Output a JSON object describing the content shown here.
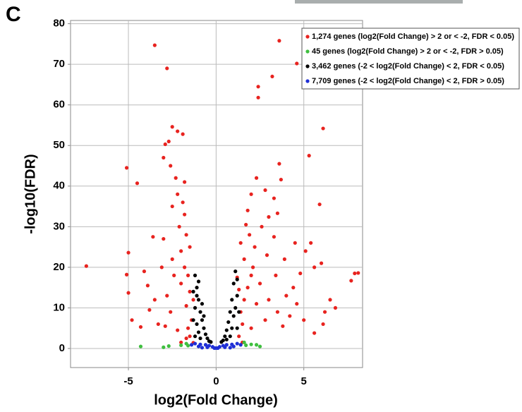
{
  "chart_data": {
    "type": "scatter",
    "panel_label": "C",
    "x_label": "log2(Fold Change)",
    "y_label": "-log10(FDR)",
    "xlim": [
      -8.3,
      8.35
    ],
    "ylim": [
      -4.7,
      80.8
    ],
    "xticks": [
      -5,
      0,
      5
    ],
    "yticks": [
      0,
      10,
      20,
      30,
      40,
      50,
      60,
      70,
      80
    ],
    "grid": true,
    "legend": "top-right",
    "series": [
      {
        "name": "1,274 genes (log2(Fold Change) > 2 or < -2, FDR < 0.05)",
        "color": "#e8231f",
        "x": [
          -7.4,
          -5.1,
          -4.5,
          -5.0,
          -5.1,
          -5.0,
          -3.5,
          -2.8,
          -2.5,
          -2.2,
          -1.9,
          -2.9,
          -2.7,
          -3.0,
          -2.6,
          -2.3,
          -1.8,
          3.6,
          4.6,
          3.2,
          2.4,
          2.4,
          6.1,
          5.3,
          2.3,
          3.6,
          3.7,
          5.9,
          2.8,
          3.3,
          3.5,
          3.0,
          7.9,
          8.1,
          7.7,
          6.8,
          6.2,
          5.6,
          4.8,
          4.4,
          -4.3,
          -4.8,
          -3.8,
          -3.9,
          -4.1,
          -3.6,
          -3.0,
          -2.5,
          -2.1,
          -1.7,
          -1.5,
          -2.5,
          -3.1,
          -2.8,
          -2.0,
          -1.7,
          -1.4,
          -1.5,
          -1.3,
          -2.2,
          -3.3,
          -1.8,
          -1.6,
          -2.4,
          -2.0,
          -1.9,
          -2.2,
          -1.8,
          -1.5,
          -1.3,
          -1.6,
          -2.6,
          -3.5,
          -2.9,
          -2.0,
          -1.7,
          1.3,
          1.5,
          1.4,
          1.6,
          1.8,
          2.0,
          1.6,
          2.2,
          1.9,
          2.6,
          1.7,
          2.1,
          2.5,
          3.0,
          3.5,
          2.8,
          2.0,
          1.5,
          3.8,
          4.2,
          4.0,
          3.4,
          3.9,
          4.5,
          5.4,
          5.1,
          6.0,
          6.5,
          6.1,
          5.0,
          5.6,
          4.6,
          2.3,
          1.2,
          1.3,
          2.9,
          3.3,
          2.0,
          1.8,
          1.4
        ],
        "y": [
          20.3,
          44.5,
          40.7,
          23.6,
          18.2,
          13.7,
          74.7,
          69,
          54.6,
          53.5,
          52.8,
          50.3,
          51,
          47,
          45,
          42,
          41,
          75.8,
          70.2,
          67,
          64.5,
          61.8,
          54.2,
          47.5,
          42,
          45.5,
          41.6,
          35.5,
          39,
          37,
          33.3,
          32.4,
          18.5,
          18.6,
          16.7,
          10,
          9,
          20,
          18.5,
          15,
          5.3,
          7,
          9.5,
          15.5,
          19,
          27.5,
          27,
          35,
          30,
          28,
          25,
          22,
          20,
          13,
          16,
          10.5,
          7,
          3,
          1.4,
          4.5,
          6,
          20,
          18,
          18,
          24,
          36,
          38,
          33,
          14,
          12,
          5,
          9,
          12,
          5.5,
          1.5,
          2.5,
          3,
          6,
          9,
          12,
          15,
          18,
          22,
          25,
          28,
          30,
          30.5,
          20,
          16,
          12,
          9,
          7,
          5,
          1.5,
          5.5,
          8,
          13,
          18,
          22,
          26,
          26,
          24,
          21,
          12,
          6,
          7,
          3.8,
          11,
          11,
          17.5,
          14.5,
          23,
          27.5,
          38,
          34,
          26
        ]
      },
      {
        "name": "45 genes (log2(Fold Change) > 2 or < -2, FDR > 0.05)",
        "color": "#3fbf3f",
        "x": [
          -4.3,
          -2.7,
          -2.0,
          -1.6,
          -1.7,
          2.0,
          2.3,
          1.7,
          2.5,
          1.6,
          -3.0
        ],
        "y": [
          0.5,
          0.6,
          0.8,
          0.7,
          1.2,
          1.0,
          0.9,
          0.8,
          0.5,
          1.5,
          0.3
        ]
      },
      {
        "name": "3,462 genes (-2 < log2(Fold Change) < 2, FDR < 0.05)",
        "color": "#000000",
        "x": [
          -1.2,
          -1.1,
          -1.0,
          -0.9,
          -0.8,
          -0.7,
          -0.6,
          -0.5,
          -0.4,
          -1.2,
          -1.1,
          -1.0,
          -0.9,
          -1.2,
          -1.1,
          -1.0,
          -0.8,
          -0.7,
          1.0,
          0.9,
          0.8,
          0.7,
          0.6,
          0.5,
          0.4,
          1.1,
          1.2,
          1.0,
          0.9,
          1.2,
          1.1,
          0.8,
          1.2,
          0.6,
          -1.3,
          -1.3,
          1.3,
          -0.3,
          0.3
        ],
        "y": [
          18,
          15,
          12,
          9,
          7,
          5,
          3.5,
          2.5,
          1.8,
          10,
          6,
          4,
          2.5,
          3,
          13,
          16.5,
          11,
          8,
          16,
          12,
          9,
          6.5,
          4.5,
          3,
          2,
          19,
          13,
          8,
          5,
          5,
          10,
          3,
          17,
          2.2,
          14,
          7,
          9,
          1.6,
          1.6
        ]
      },
      {
        "name": "7,709 genes (-2 < log2(Fold Change) < 2, FDR > 0.05)",
        "color": "#1f2fd6",
        "x": [
          -1.2,
          -0.9,
          -0.6,
          -0.4,
          -0.2,
          0,
          0.2,
          0.4,
          0.6,
          0.9,
          1.2,
          -1.0,
          -0.5,
          0.5,
          1.0,
          -1.4,
          1.4,
          -0.1,
          0.1,
          -0.8,
          0.8
        ],
        "y": [
          1.2,
          1.0,
          0.9,
          0.7,
          0.4,
          0.1,
          0.4,
          0.7,
          0.9,
          1.0,
          1.2,
          0.5,
          0.3,
          0.3,
          0.5,
          0.9,
          0.9,
          0.1,
          0.1,
          0.2,
          0.2
        ]
      }
    ]
  }
}
